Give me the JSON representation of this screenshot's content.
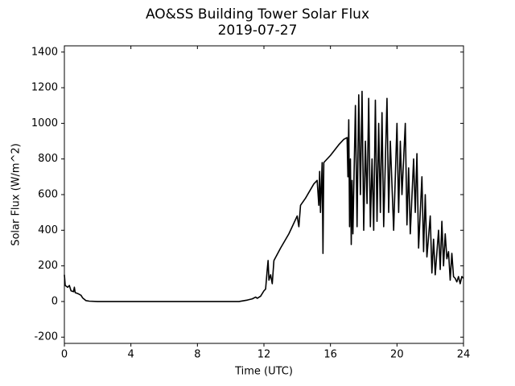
{
  "chart_data": {
    "type": "line",
    "title": "AO&SS Building Tower Solar Flux",
    "subtitle": "2019-07-27",
    "x_label": "Time (UTC)",
    "y_label": "Solar Flux (W/m^2)",
    "xlim": [
      0,
      24
    ],
    "xticks": [
      0,
      4,
      8,
      12,
      16,
      20,
      24
    ],
    "ylim": [
      -235,
      1435
    ],
    "yticks": [
      -200,
      0,
      200,
      400,
      600,
      800,
      1000,
      1200,
      1400
    ],
    "series": [
      {
        "name": "Solar Flux",
        "color": "#000000",
        "x": [
          0,
          0.05,
          0.2,
          0.3,
          0.4,
          0.55,
          0.6,
          0.65,
          0.8,
          1.0,
          1.1,
          1.3,
          1.5,
          2,
          4,
          8,
          10.5,
          11,
          11.3,
          11.5,
          11.6,
          11.8,
          12.0,
          12.1,
          12.2,
          12.25,
          12.3,
          12.4,
          12.5,
          12.6,
          13,
          13.5,
          14,
          14.1,
          14.2,
          14.5,
          15,
          15.2,
          15.3,
          15.35,
          15.4,
          15.5,
          15.55,
          15.6,
          16,
          16.5,
          16.8,
          17,
          17.05,
          17.1,
          17.15,
          17.2,
          17.25,
          17.3,
          17.35,
          17.5,
          17.6,
          17.7,
          17.8,
          17.9,
          18,
          18.1,
          18.2,
          18.3,
          18.4,
          18.5,
          18.6,
          18.7,
          18.8,
          18.9,
          19,
          19.1,
          19.2,
          19.4,
          19.5,
          19.6,
          19.8,
          20,
          20.1,
          20.2,
          20.3,
          20.5,
          20.6,
          20.7,
          20.8,
          21,
          21.1,
          21.2,
          21.3,
          21.5,
          21.6,
          21.7,
          21.8,
          22,
          22.1,
          22.2,
          22.3,
          22.5,
          22.6,
          22.7,
          22.8,
          22.9,
          23,
          23.1,
          23.2,
          23.3,
          23.4,
          23.5,
          23.6,
          23.7,
          23.8,
          23.9,
          24
        ],
        "values": [
          150,
          90,
          80,
          90,
          60,
          55,
          80,
          50,
          45,
          35,
          20,
          5,
          2,
          0,
          0,
          0,
          0,
          8,
          15,
          25,
          18,
          30,
          60,
          70,
          180,
          230,
          120,
          150,
          100,
          230,
          300,
          380,
          480,
          420,
          540,
          580,
          660,
          680,
          540,
          730,
          500,
          780,
          270,
          780,
          820,
          880,
          910,
          920,
          700,
          1020,
          420,
          800,
          320,
          680,
          380,
          1100,
          420,
          1160,
          600,
          1180,
          400,
          900,
          550,
          1140,
          420,
          800,
          400,
          1130,
          450,
          1000,
          500,
          1060,
          420,
          1140,
          500,
          900,
          400,
          1000,
          500,
          900,
          600,
          1000,
          430,
          750,
          380,
          800,
          500,
          830,
          300,
          700,
          280,
          600,
          250,
          480,
          160,
          350,
          150,
          400,
          180,
          450,
          200,
          380,
          240,
          280,
          120,
          270,
          140,
          130,
          110,
          140,
          100,
          140,
          130
        ]
      }
    ]
  }
}
